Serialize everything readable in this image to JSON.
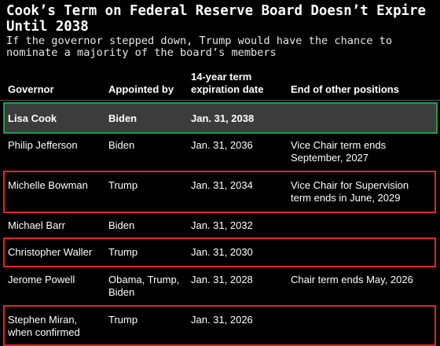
{
  "title": "Cook’s Term on Federal Reserve Board Doesn’t Expire Until 2038",
  "subtitle": "If the governor stepped down, Trump would have the chance to nominate a majority of the board’s members",
  "columns": [
    "Governor",
    "Appointed by",
    "14-year term expiration date",
    "End of other positions"
  ],
  "rows": [
    {
      "governor": "Lisa Cook",
      "appointed_by": "Biden",
      "expiration": "Jan. 31, 2038",
      "other": "",
      "highlight": "green"
    },
    {
      "governor": "Philip Jefferson",
      "appointed_by": "Biden",
      "expiration": "Jan. 31, 2036",
      "other": "Vice Chair term ends September, 2027",
      "highlight": ""
    },
    {
      "governor": "Michelle Bowman",
      "appointed_by": "Trump",
      "expiration": "Jan. 31, 2034",
      "other": "Vice Chair for Supervision term ends in June, 2029",
      "highlight": "red"
    },
    {
      "governor": "Michael Barr",
      "appointed_by": "Biden",
      "expiration": "Jan. 31, 2032",
      "other": "",
      "highlight": ""
    },
    {
      "governor": "Christopher Waller",
      "appointed_by": "Trump",
      "expiration": "Jan. 31, 2030",
      "other": "",
      "highlight": "red"
    },
    {
      "governor": "Jerome Powell",
      "appointed_by": "Obama, Trump, Biden",
      "expiration": "Jan. 31, 2028",
      "other": "Chair term ends May, 2026",
      "highlight": ""
    },
    {
      "governor": "Stephen Miran, when confirmed",
      "appointed_by": "Trump",
      "expiration": "Jan. 31, 2026",
      "other": "",
      "highlight": "red"
    }
  ],
  "colors": {
    "background": "#000000",
    "highlight_row_bg": "#3c3c3c",
    "green_outline": "#1e9d4a",
    "red_outline": "#e0262a"
  }
}
